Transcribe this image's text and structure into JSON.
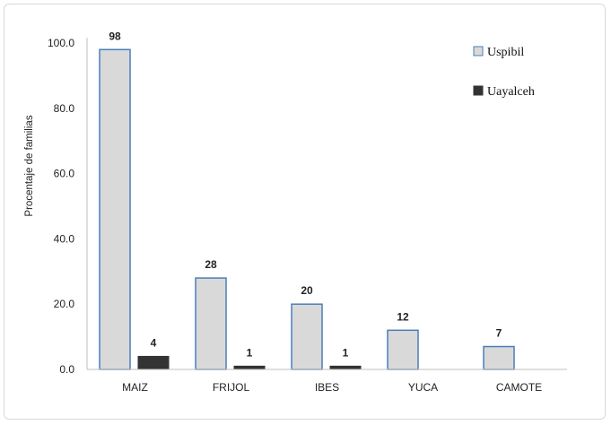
{
  "chart_data": {
    "type": "bar",
    "categories": [
      "MAIZ",
      "FRIJOL",
      "IBES",
      "YUCA",
      "CAMOTE"
    ],
    "series": [
      {
        "name": "Uspibil",
        "values": [
          98,
          28,
          20,
          12,
          7
        ],
        "labels": [
          "98",
          "28",
          "20",
          "12",
          "7"
        ],
        "fill": "#d9d9d9",
        "stroke": "#4a7ebb"
      },
      {
        "name": "Uayalceh",
        "values": [
          4,
          1,
          1,
          null,
          null
        ],
        "labels": [
          "4",
          "1",
          "1",
          "",
          ""
        ],
        "fill": "#333333",
        "stroke": "#333333"
      }
    ],
    "ylabel": "Procentaje de familias",
    "ylim": [
      0,
      100
    ],
    "yticks": [
      "0.0",
      "20.0",
      "40.0",
      "60.0",
      "80.0",
      "100.0"
    ],
    "ytick_values": [
      0,
      20,
      40,
      60,
      80,
      100
    ],
    "grid": false,
    "legend_position": "top-right"
  }
}
